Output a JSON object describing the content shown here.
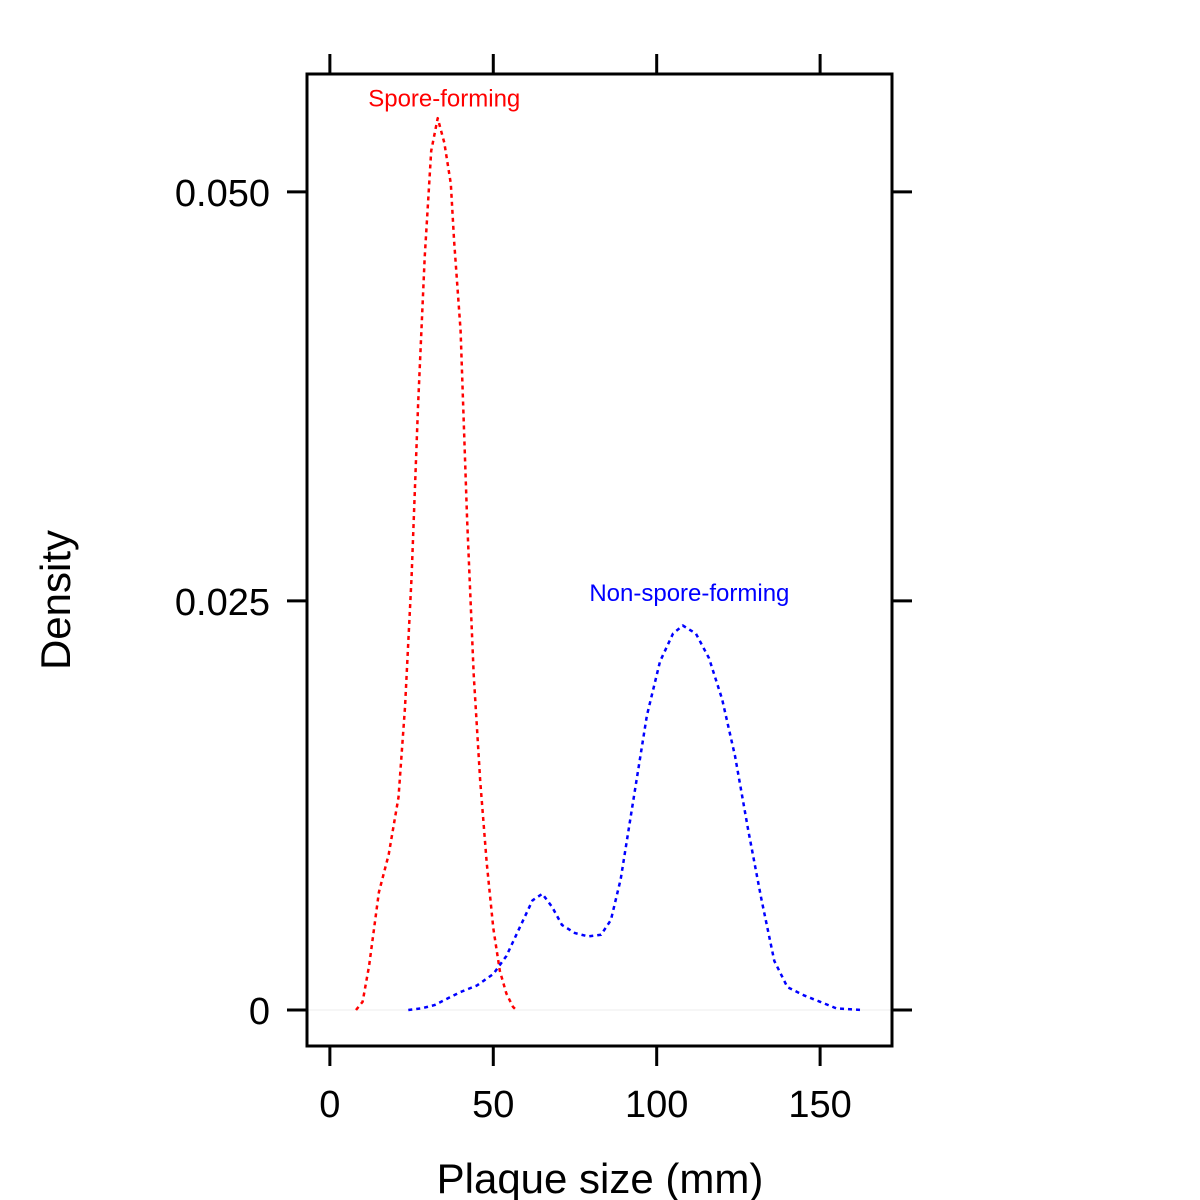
{
  "chart_data": {
    "type": "line",
    "title": "",
    "xlabel": "Plaque size (mm)",
    "ylabel": "Density",
    "xlim": [
      -7,
      172
    ],
    "ylim": [
      -0.0022,
      0.0572
    ],
    "xticks": [
      {
        "value": 0,
        "label": "0"
      },
      {
        "value": 50,
        "label": "50"
      },
      {
        "value": 100,
        "label": "100"
      },
      {
        "value": 150,
        "label": "150"
      }
    ],
    "yticks": [
      {
        "value": 0,
        "label": "0"
      },
      {
        "value": 0.025,
        "label": "0.025"
      },
      {
        "value": 0.05,
        "label": "0.050"
      }
    ],
    "grid": false,
    "legend": "none",
    "line_style": "dotted",
    "series": [
      {
        "name": "Spore-forming",
        "color": "#ff0000",
        "label_at": [
          35,
          0.0552
        ],
        "points": [
          [
            8,
            0.0
          ],
          [
            10,
            0.0005
          ],
          [
            12,
            0.0027
          ],
          [
            15,
            0.0072
          ],
          [
            18,
            0.0095
          ],
          [
            21,
            0.013
          ],
          [
            23,
            0.0185
          ],
          [
            25,
            0.0265
          ],
          [
            27,
            0.037
          ],
          [
            29,
            0.046
          ],
          [
            31,
            0.0525
          ],
          [
            33,
            0.0545
          ],
          [
            35,
            0.053
          ],
          [
            37,
            0.0505
          ],
          [
            38,
            0.047
          ],
          [
            40,
            0.0415
          ],
          [
            42,
            0.03
          ],
          [
            44,
            0.0205
          ],
          [
            46,
            0.014
          ],
          [
            48,
            0.009
          ],
          [
            50,
            0.005
          ],
          [
            52,
            0.0024
          ],
          [
            54,
            0.001
          ],
          [
            56,
            0.0002
          ],
          [
            57,
            0.0
          ]
        ]
      },
      {
        "name": "Non-spore-forming",
        "color": "#0000ff",
        "label_at": [
          110,
          0.025
        ],
        "points": [
          [
            24,
            0.0
          ],
          [
            28,
            0.0001
          ],
          [
            32,
            0.0003
          ],
          [
            36,
            0.0007
          ],
          [
            40,
            0.0011
          ],
          [
            45,
            0.0015
          ],
          [
            50,
            0.0022
          ],
          [
            54,
            0.0033
          ],
          [
            58,
            0.005
          ],
          [
            62,
            0.0067
          ],
          [
            65,
            0.0071
          ],
          [
            68,
            0.0063
          ],
          [
            71,
            0.0052
          ],
          [
            75,
            0.0047
          ],
          [
            79,
            0.0045
          ],
          [
            83,
            0.0046
          ],
          [
            86,
            0.0055
          ],
          [
            89,
            0.008
          ],
          [
            93,
            0.013
          ],
          [
            97,
            0.018
          ],
          [
            101,
            0.0213
          ],
          [
            105,
            0.023
          ],
          [
            108,
            0.0235
          ],
          [
            112,
            0.023
          ],
          [
            116,
            0.0215
          ],
          [
            120,
            0.019
          ],
          [
            124,
            0.0155
          ],
          [
            128,
            0.011
          ],
          [
            132,
            0.0068
          ],
          [
            136,
            0.003
          ],
          [
            140,
            0.0014
          ],
          [
            145,
            0.0009
          ],
          [
            150,
            0.0005
          ],
          [
            155,
            0.0001
          ],
          [
            163,
            0.0
          ]
        ]
      }
    ]
  }
}
